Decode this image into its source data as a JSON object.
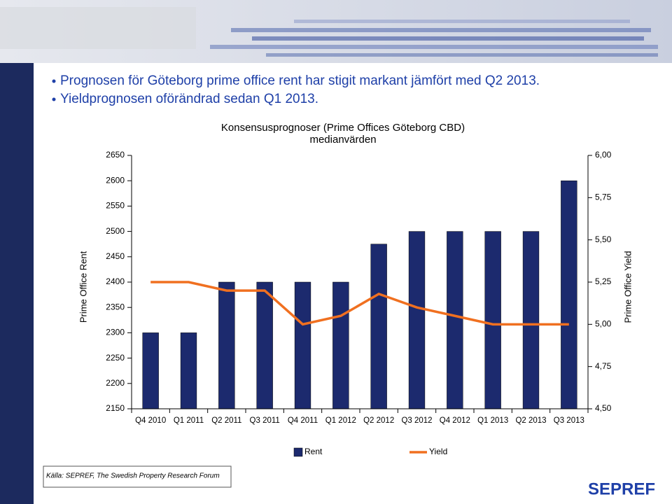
{
  "header": {
    "bullets": [
      "Prognosen för Göteborg prime office rent har stigit markant jämfört med Q2 2013.",
      "Yieldprognosen oförändrad sedan Q1 2013."
    ]
  },
  "chart_data": {
    "type": "bar",
    "title": "Konsensusprognoser (Prime Offices Göteborg CBD)",
    "subtitle": "medianvärden",
    "ylabel": "Prime Office Rent",
    "y2label": "Prime Office Yield",
    "categories": [
      "Q4 2010",
      "Q1 2011",
      "Q2 2011",
      "Q3 2011",
      "Q4 2011",
      "Q1 2012",
      "Q2 2012",
      "Q3 2012",
      "Q4 2012",
      "Q1 2013",
      "Q2 2013",
      "Q3 2013"
    ],
    "series": [
      {
        "name": "Rent",
        "type": "bar",
        "color": "#1c2a6e",
        "values": [
          2300,
          2300,
          2400,
          2400,
          2400,
          2400,
          2475,
          2500,
          2500,
          2500,
          2500,
          2600
        ]
      },
      {
        "name": "Yield",
        "type": "line",
        "axis": "y2",
        "color": "#f07020",
        "values": [
          5.25,
          5.25,
          5.2,
          5.2,
          5.0,
          5.05,
          5.18,
          5.1,
          5.05,
          5.0,
          5.0,
          5.0
        ]
      }
    ],
    "ylim": [
      2150,
      2650
    ],
    "yticks": [
      2150,
      2200,
      2250,
      2300,
      2350,
      2400,
      2450,
      2500,
      2550,
      2600,
      2650
    ],
    "y2lim": [
      4.5,
      6.0
    ],
    "y2ticks": [
      {
        "value": 4.5,
        "label": "4,50"
      },
      {
        "value": 4.75,
        "label": "4,75"
      },
      {
        "value": 5.0,
        "label": "5,00"
      },
      {
        "value": 5.25,
        "label": "5,25"
      },
      {
        "value": 5.5,
        "label": "5,50"
      },
      {
        "value": 5.75,
        "label": "5,75"
      },
      {
        "value": 6.0,
        "label": "6,00"
      }
    ],
    "legend": "bottom"
  },
  "footer": {
    "source": "Källa: SEPREF, The Swedish Property Research Forum",
    "logo": "SEPREF"
  }
}
